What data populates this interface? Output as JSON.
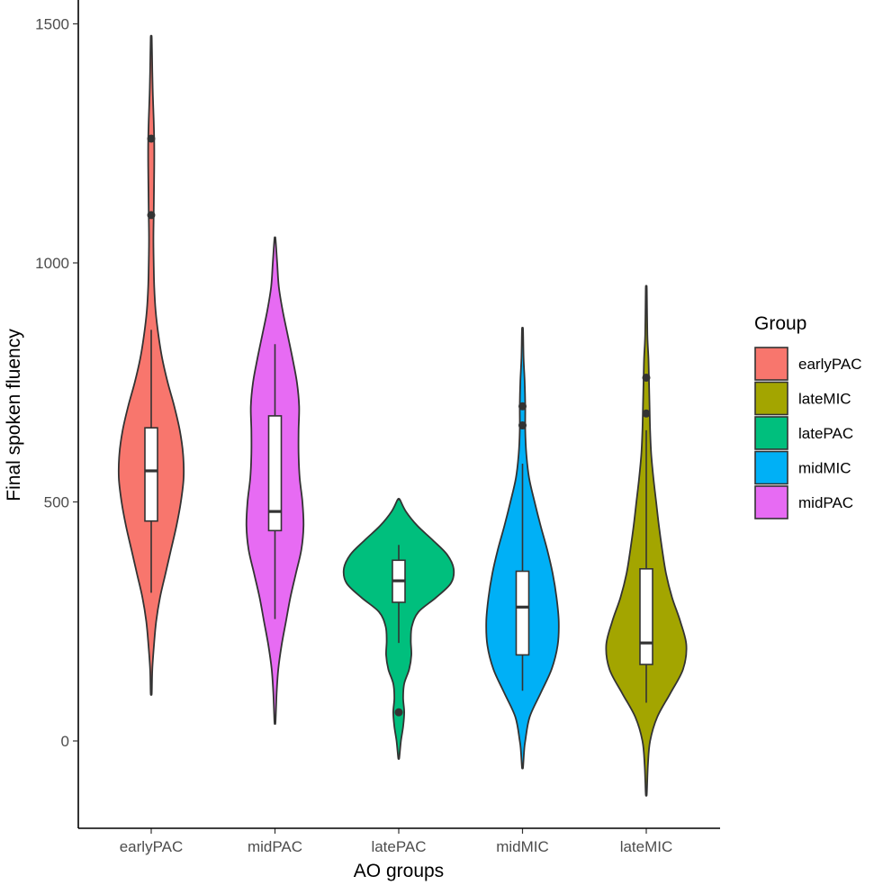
{
  "chart_data": {
    "type": "violin",
    "xlabel": "AO groups",
    "ylabel": "Final spoken fluency",
    "ylim": [
      -175,
      1550
    ],
    "y_ticks": [
      0,
      500,
      1000,
      1500
    ],
    "categories": [
      "earlyPAC",
      "midPAC",
      "latePAC",
      "midMIC",
      "lateMIC"
    ],
    "legend": {
      "title": "Group",
      "position": "right",
      "items": [
        {
          "label": "earlyPAC",
          "color": "#F8766D"
        },
        {
          "label": "lateMIC",
          "color": "#A3A500"
        },
        {
          "label": "latePAC",
          "color": "#00BF7D"
        },
        {
          "label": "midMIC",
          "color": "#00B0F6"
        },
        {
          "label": "midPAC",
          "color": "#E76BF3"
        }
      ]
    },
    "series": [
      {
        "name": "earlyPAC",
        "color": "#F8766D",
        "density": [
          [
            100,
            0.01
          ],
          [
            150,
            0.02
          ],
          [
            200,
            0.05
          ],
          [
            250,
            0.09
          ],
          [
            300,
            0.16
          ],
          [
            350,
            0.26
          ],
          [
            400,
            0.36
          ],
          [
            450,
            0.46
          ],
          [
            500,
            0.54
          ],
          [
            550,
            0.59
          ],
          [
            600,
            0.58
          ],
          [
            650,
            0.52
          ],
          [
            700,
            0.42
          ],
          [
            750,
            0.3
          ],
          [
            800,
            0.2
          ],
          [
            850,
            0.13
          ],
          [
            900,
            0.08
          ],
          [
            950,
            0.055
          ],
          [
            1000,
            0.045
          ],
          [
            1050,
            0.04
          ],
          [
            1100,
            0.045
          ],
          [
            1150,
            0.05
          ],
          [
            1200,
            0.055
          ],
          [
            1250,
            0.055
          ],
          [
            1300,
            0.045
          ],
          [
            1350,
            0.03
          ],
          [
            1400,
            0.02
          ],
          [
            1470,
            0.01
          ]
        ],
        "box": {
          "lower_whisker": 310,
          "q1": 460,
          "median": 565,
          "q3": 655,
          "upper_whisker": 860
        },
        "outliers": [
          1100,
          1260
        ]
      },
      {
        "name": "midPAC",
        "color": "#E76BF3",
        "density": [
          [
            40,
            0.01
          ],
          [
            100,
            0.03
          ],
          [
            150,
            0.06
          ],
          [
            200,
            0.12
          ],
          [
            250,
            0.2
          ],
          [
            300,
            0.28
          ],
          [
            350,
            0.38
          ],
          [
            400,
            0.48
          ],
          [
            450,
            0.52
          ],
          [
            500,
            0.5
          ],
          [
            550,
            0.45
          ],
          [
            600,
            0.43
          ],
          [
            650,
            0.43
          ],
          [
            700,
            0.44
          ],
          [
            750,
            0.4
          ],
          [
            800,
            0.32
          ],
          [
            850,
            0.23
          ],
          [
            900,
            0.14
          ],
          [
            950,
            0.07
          ],
          [
            1000,
            0.04
          ],
          [
            1050,
            0.01
          ]
        ],
        "box": {
          "lower_whisker": 255,
          "q1": 440,
          "median": 480,
          "q3": 680,
          "upper_whisker": 830
        },
        "outliers": []
      },
      {
        "name": "latePAC",
        "color": "#00BF7D",
        "density": [
          [
            -35,
            0.01
          ],
          [
            0,
            0.04
          ],
          [
            30,
            0.08
          ],
          [
            60,
            0.1
          ],
          [
            90,
            0.08
          ],
          [
            120,
            0.1
          ],
          [
            150,
            0.19
          ],
          [
            180,
            0.23
          ],
          [
            210,
            0.22
          ],
          [
            240,
            0.24
          ],
          [
            270,
            0.36
          ],
          [
            300,
            0.68
          ],
          [
            330,
            0.95
          ],
          [
            360,
            1.0
          ],
          [
            390,
            0.88
          ],
          [
            420,
            0.62
          ],
          [
            450,
            0.34
          ],
          [
            480,
            0.13
          ],
          [
            505,
            0.02
          ]
        ],
        "box": {
          "lower_whisker": 205,
          "q1": 290,
          "median": 335,
          "q3": 378,
          "upper_whisker": 410
        },
        "outliers": [
          60
        ]
      },
      {
        "name": "midMIC",
        "color": "#00B0F6",
        "density": [
          [
            -55,
            0.01
          ],
          [
            -20,
            0.03
          ],
          [
            0,
            0.05
          ],
          [
            50,
            0.13
          ],
          [
            100,
            0.33
          ],
          [
            150,
            0.53
          ],
          [
            200,
            0.64
          ],
          [
            250,
            0.66
          ],
          [
            300,
            0.62
          ],
          [
            350,
            0.55
          ],
          [
            400,
            0.45
          ],
          [
            450,
            0.33
          ],
          [
            500,
            0.22
          ],
          [
            550,
            0.12
          ],
          [
            600,
            0.07
          ],
          [
            650,
            0.05
          ],
          [
            700,
            0.05
          ],
          [
            750,
            0.04
          ],
          [
            800,
            0.02
          ],
          [
            860,
            0.01
          ]
        ],
        "box": {
          "lower_whisker": 105,
          "q1": 180,
          "median": 280,
          "q3": 355,
          "upper_whisker": 580
        },
        "outliers": [
          660,
          700
        ]
      },
      {
        "name": "lateMIC",
        "color": "#A3A500",
        "density": [
          [
            -110,
            0.01
          ],
          [
            -50,
            0.03
          ],
          [
            0,
            0.07
          ],
          [
            50,
            0.2
          ],
          [
            100,
            0.44
          ],
          [
            150,
            0.67
          ],
          [
            200,
            0.73
          ],
          [
            250,
            0.62
          ],
          [
            300,
            0.47
          ],
          [
            350,
            0.36
          ],
          [
            400,
            0.29
          ],
          [
            450,
            0.23
          ],
          [
            500,
            0.18
          ],
          [
            550,
            0.13
          ],
          [
            600,
            0.09
          ],
          [
            650,
            0.07
          ],
          [
            700,
            0.06
          ],
          [
            750,
            0.05
          ],
          [
            800,
            0.04
          ],
          [
            850,
            0.02
          ],
          [
            945,
            0.01
          ]
        ],
        "box": {
          "lower_whisker": 80,
          "q1": 160,
          "median": 205,
          "q3": 360,
          "upper_whisker": 650
        },
        "outliers": [
          685,
          760
        ]
      }
    ]
  }
}
